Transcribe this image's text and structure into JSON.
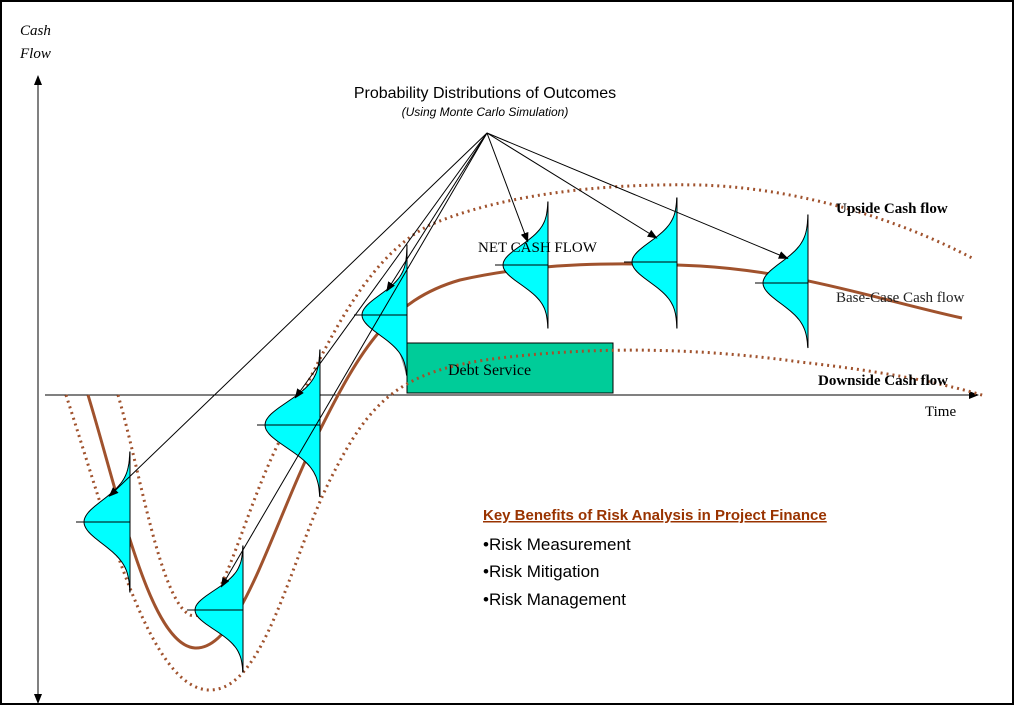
{
  "axis": {
    "y_label_lines": [
      "Cash",
      "Flow"
    ],
    "x_label": "Time"
  },
  "title": "Probability Distributions of Outcomes",
  "subtitle": "(Using Monte Carlo Simulation)",
  "curves": {
    "upside": "Upside Cash flow",
    "base": "Base-Case Cash flow",
    "downside": "Downside Cash flow",
    "net": "NET CASH FLOW"
  },
  "debt_service": "Debt Service",
  "benefits": {
    "heading": "Key Benefits of  Risk Analysis in Project Finance",
    "items": [
      "Risk Measurement",
      "Risk Mitigation",
      "Risk Management"
    ]
  }
}
